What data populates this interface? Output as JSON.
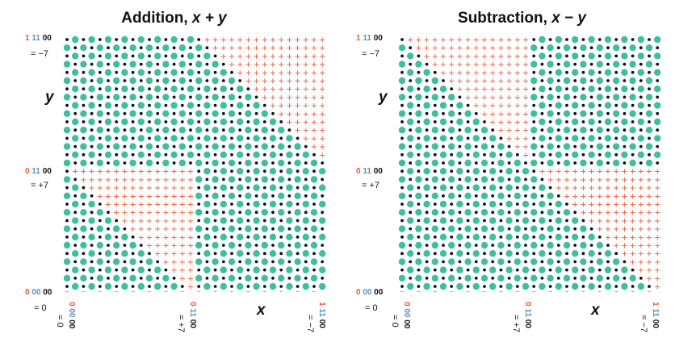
{
  "colors": {
    "teal": "#40bf9e",
    "black": "#111111",
    "plus": "#e8593c",
    "sign_bit": "#e8593c",
    "magnitude_bits": "#5b8fc7"
  },
  "panels": [
    {
      "title": "Addition, ",
      "title_expr": "x + y",
      "op": "add",
      "y_axis_name": "y",
      "x_axis_name": "x",
      "y_labels": [
        {
          "sign": "1",
          "mag": "11",
          "lo": "00",
          "value": "= −7"
        },
        {
          "sign": "0",
          "mag": "11",
          "lo": "00",
          "value": "= +7"
        },
        {
          "sign": "0",
          "mag": "00",
          "lo": "00",
          "value": "= 0"
        }
      ],
      "x_labels": [
        {
          "sign": "0",
          "mag": "00",
          "lo": "00",
          "value": "= 0"
        },
        {
          "sign": "0",
          "mag": "11",
          "lo": "00",
          "value": "= +7"
        },
        {
          "sign": "1",
          "mag": "11",
          "lo": "00",
          "value": "= −7"
        }
      ]
    },
    {
      "title": "Subtraction, ",
      "title_expr": "x − y",
      "op": "sub",
      "y_axis_name": "y",
      "x_axis_name": "x",
      "y_labels": [
        {
          "sign": "1",
          "mag": "11",
          "lo": "00",
          "value": "= −7"
        },
        {
          "sign": "0",
          "mag": "11",
          "lo": "00",
          "value": "= +7"
        },
        {
          "sign": "0",
          "mag": "00",
          "lo": "00",
          "value": "= 0"
        }
      ],
      "x_labels": [
        {
          "sign": "0",
          "mag": "00",
          "lo": "00",
          "value": "= 0"
        },
        {
          "sign": "0",
          "mag": "11",
          "lo": "00",
          "value": "= +7"
        },
        {
          "sign": "1",
          "mag": "11",
          "lo": "00",
          "value": "= −7"
        }
      ]
    }
  ]
}
